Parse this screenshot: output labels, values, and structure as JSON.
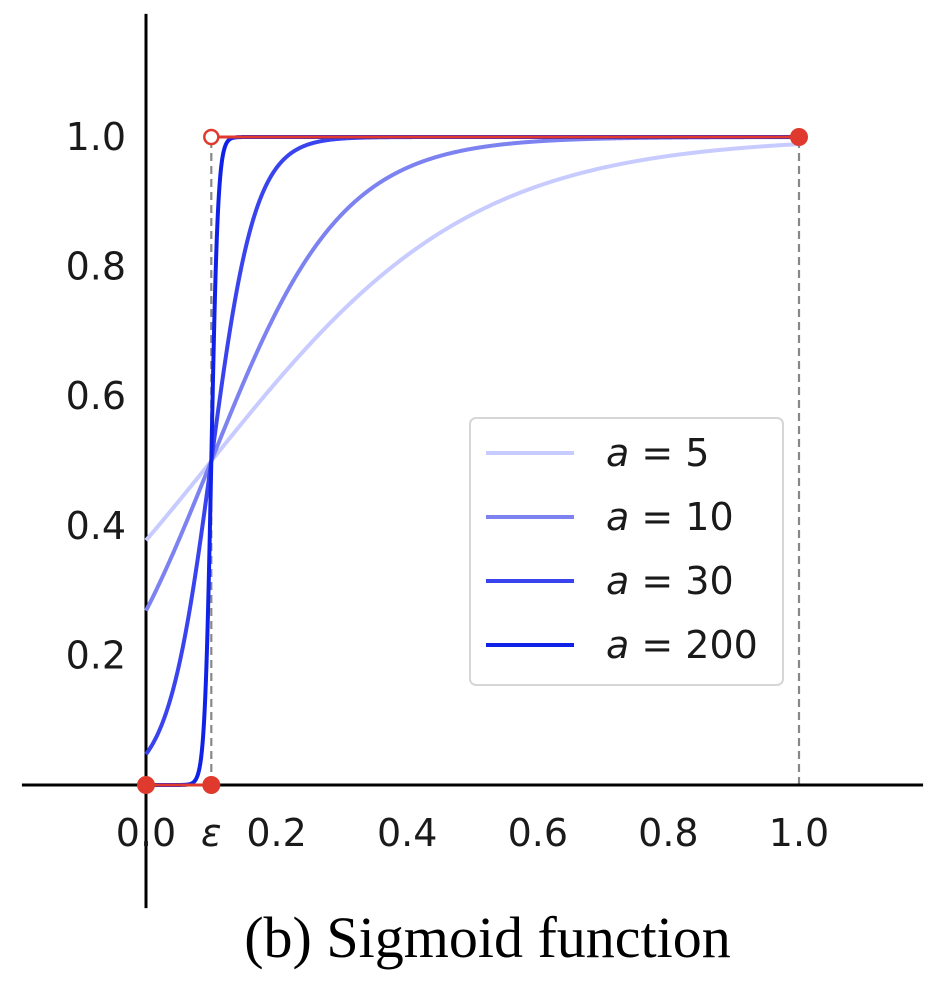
{
  "caption": "(b) Sigmoid function",
  "chart_data": {
    "type": "line",
    "title": "",
    "xlabel": "",
    "ylabel": "",
    "xlim": [
      -0.19,
      1.19
    ],
    "ylim": [
      -0.19,
      1.19
    ],
    "epsilon": 0.1,
    "x_ticks": [
      {
        "value": 0.0,
        "label": "0.0"
      },
      {
        "value": 0.1,
        "label": "ε"
      },
      {
        "value": 0.2,
        "label": "0.2"
      },
      {
        "value": 0.4,
        "label": "0.4"
      },
      {
        "value": 0.6,
        "label": "0.6"
      },
      {
        "value": 0.8,
        "label": "0.8"
      },
      {
        "value": 1.0,
        "label": "1.0"
      }
    ],
    "y_ticks": [
      {
        "value": 0.2,
        "label": "0.2"
      },
      {
        "value": 0.4,
        "label": "0.4"
      },
      {
        "value": 0.6,
        "label": "0.6"
      },
      {
        "value": 0.8,
        "label": "0.8"
      },
      {
        "value": 1.0,
        "label": "1.0"
      }
    ],
    "series": [
      {
        "name": "a = 5",
        "a": 5,
        "color": "#c8cbff",
        "function": "1/(1+exp(-a(x-0.1)))"
      },
      {
        "name": "a = 10",
        "a": 10,
        "color": "#7c82f0",
        "function": "1/(1+exp(-a(x-0.1)))"
      },
      {
        "name": "a = 30",
        "a": 30,
        "color": "#3a44ee",
        "function": "1/(1+exp(-a(x-0.1)))"
      },
      {
        "name": "a = 200",
        "a": 200,
        "color": "#1022e8",
        "function": "1/(1+exp(-a(x-0.1)))"
      }
    ],
    "step_function": {
      "color": "#e03a2e",
      "segments": [
        {
          "x": [
            0.0,
            0.1
          ],
          "y": [
            0.0,
            0.0
          ]
        },
        {
          "x": [
            0.1,
            1.0
          ],
          "y": [
            1.0,
            1.0
          ]
        }
      ],
      "filled_points": [
        [
          0.0,
          0.0
        ],
        [
          0.1,
          0.0
        ],
        [
          1.0,
          1.0
        ]
      ],
      "open_points": [
        [
          0.1,
          1.0
        ]
      ]
    },
    "reference_lines": [
      {
        "x": 0.1,
        "y": [
          0.0,
          1.0
        ],
        "style": "dashed",
        "color": "#888888"
      },
      {
        "x": 1.0,
        "y": [
          0.0,
          1.0
        ],
        "style": "dashed",
        "color": "#888888"
      }
    ],
    "legend": {
      "placement": "center-right",
      "entries": [
        {
          "symbol": "a",
          "rest": " = 5"
        },
        {
          "symbol": "a",
          "rest": " = 10"
        },
        {
          "symbol": "a",
          "rest": " = 30"
        },
        {
          "symbol": "a",
          "rest": " = 200"
        }
      ]
    },
    "grid": false
  }
}
